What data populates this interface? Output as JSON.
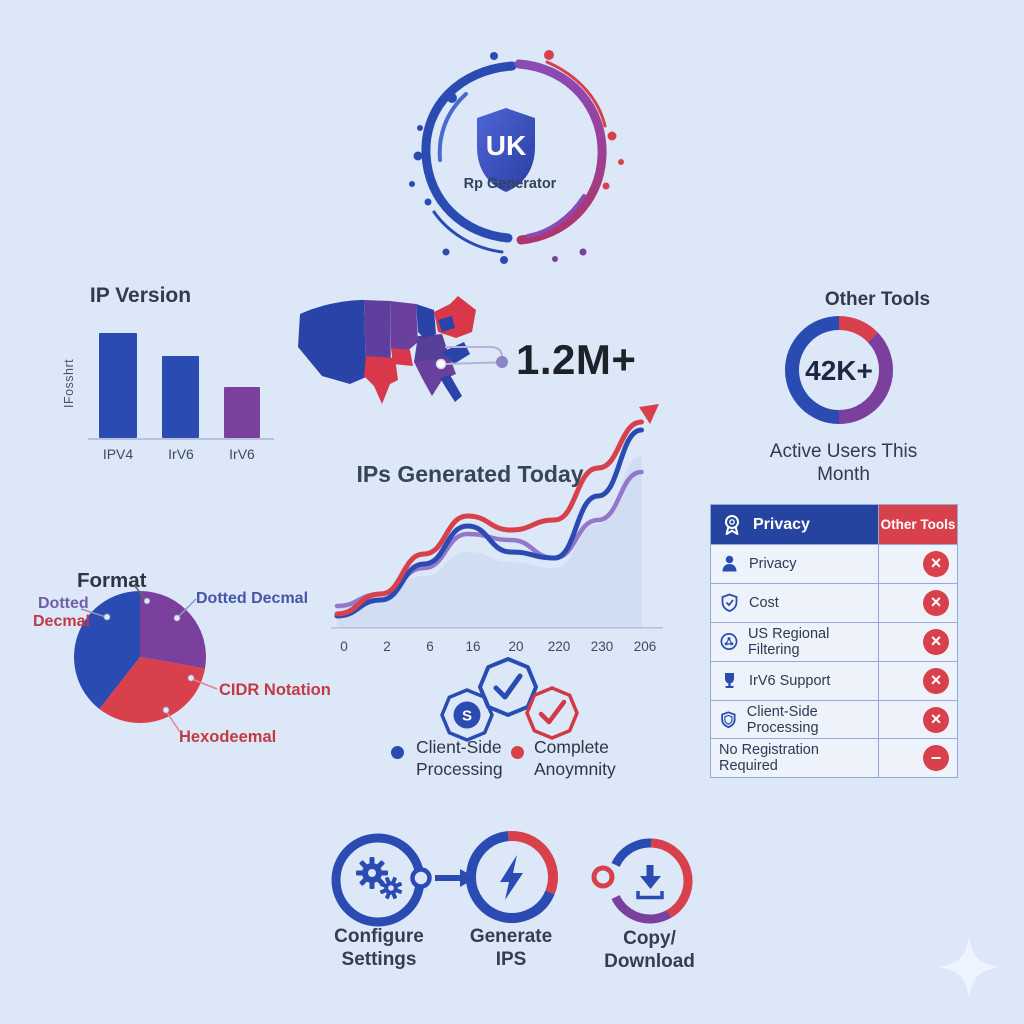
{
  "palette": {
    "blue": "#2a4cb2",
    "deep_blue": "#24449f",
    "red": "#d8404b",
    "dark_red": "#c23a46",
    "purple": "#7b3f9e",
    "lavender": "#9577c9",
    "navy_text": "#2e3a4d",
    "black_text": "#1d2128",
    "bg": "#dce8f8",
    "table_border": "#94a9dc",
    "row_bg": "#eef3fb",
    "area_fill": "#c9d3ec"
  },
  "logo": {
    "shield_label": "UK",
    "subtitle": "Rp Generator"
  },
  "bar_chart": {
    "title": "IP Version",
    "y_axis_label": "IFosshrt",
    "labels": [
      "IPV4",
      "IrV6",
      "IrV6"
    ],
    "bar_heights": [
      "105px",
      "82px",
      "51px"
    ]
  },
  "map_callout": {
    "stat": "1.2M+"
  },
  "donut": {
    "title": "Other Tools",
    "center_value": "42K+",
    "caption_line1": "Active Users This",
    "caption_line2": "Month"
  },
  "line_chart": {
    "title": "IPs Generated Today",
    "ticks": [
      "0",
      "2",
      "6",
      "16",
      "20",
      "220",
      "230",
      "206"
    ]
  },
  "pie": {
    "title": "Format",
    "label_right": "Dotted Decmal",
    "label_left_top": "Dotted",
    "label_left_bottom": "Decmal",
    "label_cidr": "CIDR Notation",
    "label_hex": "Hexodeemal"
  },
  "comparison_table": {
    "header_left": "Privacy",
    "header_right": "Other Tools",
    "rows": [
      {
        "label": "Privacy",
        "glyph": "×"
      },
      {
        "label": "Cost",
        "glyph": "×"
      },
      {
        "label": "US Regional Filtering",
        "glyph": "×"
      },
      {
        "label": "IrV6 Support",
        "glyph": "×"
      },
      {
        "label": "Client-Side Processing",
        "glyph": "×"
      },
      {
        "label": "No Registration Required",
        "glyph": "−"
      }
    ]
  },
  "badges": {
    "seal_glyph": "S",
    "legend": [
      {
        "line1": "Client-Side",
        "line2": "Processing"
      },
      {
        "line1": "Complete",
        "line2": "Anoymnity"
      }
    ]
  },
  "process_flow": {
    "steps": [
      {
        "label1": "Configure Settings",
        "label2": ""
      },
      {
        "label1": "Generate",
        "label2": "IPS"
      },
      {
        "label1": "Copy/",
        "label2": "Download"
      }
    ]
  },
  "chart_data": [
    {
      "type": "bar",
      "title": "IP Version",
      "ylabel": "IFosshrt",
      "categories": [
        "IPV4",
        "IrV6",
        "IrV6"
      ],
      "values": [
        100,
        78,
        49
      ],
      "colors": [
        "#2a4cb2",
        "#2a4cb2",
        "#7b3f9e"
      ],
      "note": "relative heights, no numeric axis shown"
    },
    {
      "type": "pie",
      "subtype": "donut",
      "title": "Other Tools",
      "center_label": "42K+",
      "caption": "Active Users This Month",
      "slices": [
        {
          "label": "red segment",
          "color": "#d8404b",
          "pct": 13
        },
        {
          "label": "purple segment",
          "color": "#7b3f9e",
          "pct": 37
        },
        {
          "label": "blue segment",
          "color": "#2a4cb2",
          "pct": 50
        }
      ]
    },
    {
      "type": "line",
      "title": "IPs Generated Today",
      "x": [
        "0",
        "2",
        "6",
        "16",
        "20",
        "220",
        "230",
        "206"
      ],
      "ylim": [
        0,
        100
      ],
      "grid": false,
      "legend_position": "none",
      "series": [
        {
          "name": "purple",
          "color": "#9577c9",
          "values": [
            7,
            13,
            26,
            43,
            40,
            31,
            50,
            74
          ]
        },
        {
          "name": "blue",
          "color": "#2a4cb2",
          "values": [
            2,
            10,
            28,
            47,
            34,
            31,
            62,
            95
          ]
        },
        {
          "name": "red",
          "color": "#d8404b",
          "values": [
            3,
            13,
            33,
            52,
            45,
            50,
            76,
            99
          ]
        }
      ],
      "area_values": [
        8,
        14,
        22,
        34,
        29,
        26,
        48,
        82
      ]
    },
    {
      "type": "pie",
      "title": "Format",
      "slices": [
        {
          "label": "Dotted Decmal",
          "color": "#7b3f9e",
          "pct": 28
        },
        {
          "label": "CIDR Notation / Hexodeemal",
          "color": "#d8404b",
          "pct": 33
        },
        {
          "label": "Dotted Decmal",
          "color": "#2a4cb2",
          "pct": 39
        }
      ]
    },
    {
      "type": "table",
      "columns": [
        "Privacy",
        "Other Tools"
      ],
      "rows": [
        [
          "Privacy",
          "no"
        ],
        [
          "Cost",
          "no"
        ],
        [
          "US Regional Filtering",
          "no"
        ],
        [
          "IrV6 Support",
          "no"
        ],
        [
          "Client-Side Processing",
          "no"
        ],
        [
          "No Registration Required",
          "minus"
        ]
      ]
    },
    {
      "type": "stat",
      "value": "1.2M+",
      "context": "map callout"
    }
  ]
}
